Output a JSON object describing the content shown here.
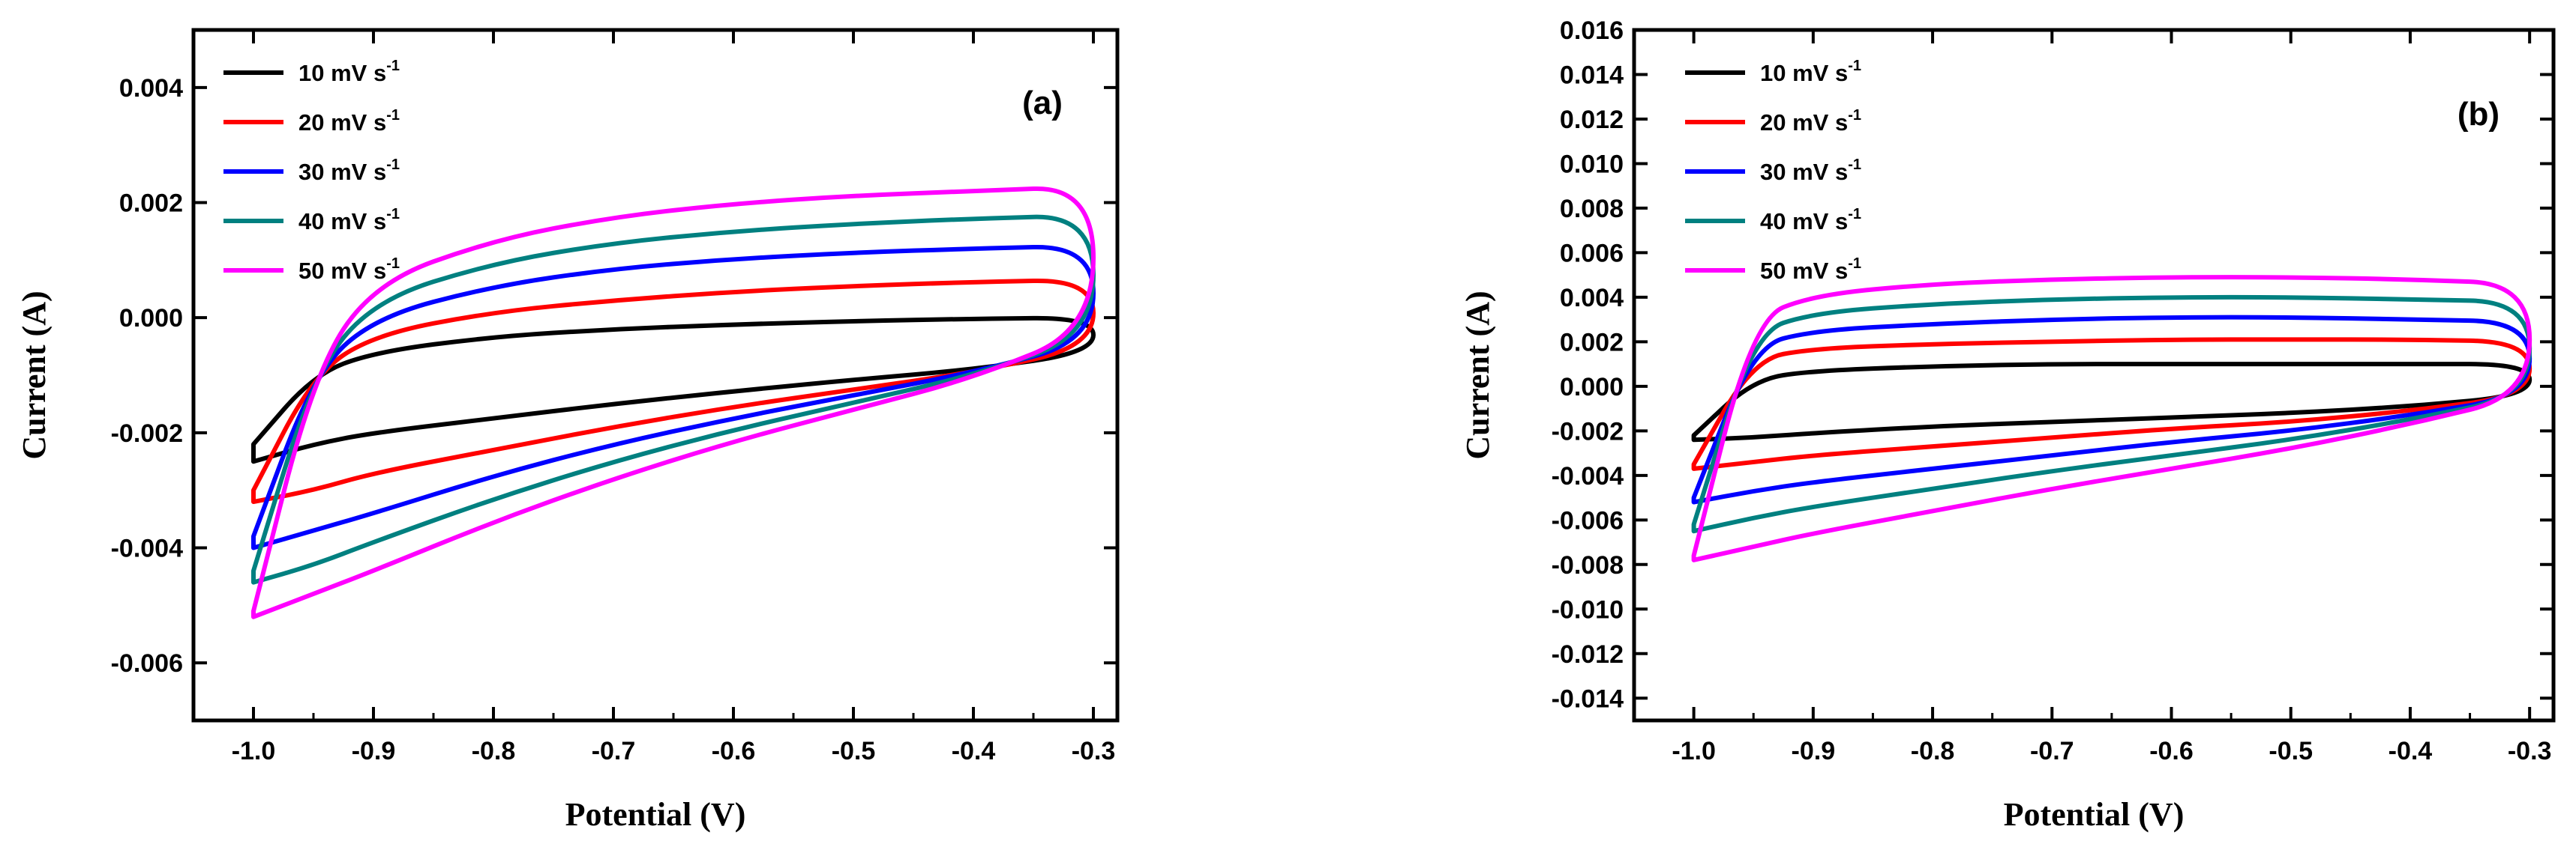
{
  "chart_data": [
    {
      "type": "line",
      "subtype": "cyclic-voltammogram",
      "panel_label": "(a)",
      "xlabel": "Potential (V)",
      "ylabel": "Current (A)",
      "xlim": [
        -1.05,
        -0.28
      ],
      "ylim": [
        -0.007,
        0.005
      ],
      "xticks": [
        -1.0,
        -0.9,
        -0.8,
        -0.7,
        -0.6,
        -0.5,
        -0.4,
        -0.3
      ],
      "xtick_labels": [
        "-1.0",
        "-0.9",
        "-0.8",
        "-0.7",
        "-0.6",
        "-0.5",
        "-0.4",
        "-0.3"
      ],
      "yticks": [
        -0.006,
        -0.004,
        -0.002,
        0.0,
        0.002,
        0.004
      ],
      "ytick_labels": [
        "-0.006",
        "-0.004",
        "-0.002",
        "0.000",
        "0.002",
        "0.004"
      ],
      "legend_position": "top-left",
      "series": [
        {
          "name": "10 mV s",
          "unit_sup": "-1",
          "color": "#000000",
          "x": [
            -1.0,
            -0.95,
            -0.9,
            -0.8,
            -0.7,
            -0.6,
            -0.5,
            -0.4,
            -0.3
          ],
          "upper": [
            -0.0022,
            -0.001,
            -0.0006,
            -0.00033,
            -0.0002,
            -0.00012,
            -6e-05,
            -2e-05,
            0.0
          ],
          "lower": [
            -0.0025,
            -0.0022,
            -0.002,
            -0.00175,
            -0.0015,
            -0.00128,
            -0.00108,
            -0.0009,
            -0.0006
          ]
        },
        {
          "name": "20 mV s",
          "unit_sup": "-1",
          "color": "#ff0000",
          "x": [
            -1.0,
            -0.95,
            -0.9,
            -0.8,
            -0.7,
            -0.6,
            -0.5,
            -0.4,
            -0.3
          ],
          "upper": [
            -0.003,
            -0.001,
            -0.0003,
            0.0001,
            0.0003,
            0.00045,
            0.00055,
            0.00062,
            0.00066
          ],
          "lower": [
            -0.0032,
            -0.003,
            -0.0027,
            -0.0023,
            -0.0019,
            -0.00155,
            -0.00125,
            -0.00095,
            -0.0005
          ]
        },
        {
          "name": "30 mV s",
          "unit_sup": "-1",
          "color": "#0000ff",
          "x": [
            -1.0,
            -0.95,
            -0.9,
            -0.8,
            -0.7,
            -0.6,
            -0.5,
            -0.4,
            -0.3
          ],
          "upper": [
            -0.0038,
            -0.001,
            0.0,
            0.00055,
            0.00085,
            0.00102,
            0.00113,
            0.0012,
            0.00125
          ],
          "lower": [
            -0.004,
            -0.0037,
            -0.0034,
            -0.00275,
            -0.0022,
            -0.00175,
            -0.00135,
            -0.00095,
            -0.0004
          ]
        },
        {
          "name": "40 mV s",
          "unit_sup": "-1",
          "color": "#008080",
          "x": [
            -1.0,
            -0.95,
            -0.9,
            -0.8,
            -0.7,
            -0.6,
            -0.5,
            -0.4,
            -0.3
          ],
          "upper": [
            -0.0044,
            -0.001,
            0.0003,
            0.00095,
            0.0013,
            0.0015,
            0.00163,
            0.00172,
            0.00178
          ],
          "lower": [
            -0.0046,
            -0.0043,
            -0.0039,
            -0.00315,
            -0.0025,
            -0.00195,
            -0.00148,
            -0.001,
            -0.0003
          ]
        },
        {
          "name": "50 mV s",
          "unit_sup": "-1",
          "color": "#ff00ff",
          "x": [
            -1.0,
            -0.95,
            -0.9,
            -0.8,
            -0.7,
            -0.6,
            -0.5,
            -0.4,
            -0.3
          ],
          "upper": [
            -0.0051,
            -0.001,
            0.0006,
            0.00135,
            0.00175,
            0.00198,
            0.00212,
            0.0022,
            0.00228
          ],
          "lower": [
            -0.0052,
            -0.0048,
            -0.0044,
            -0.00355,
            -0.0028,
            -0.00215,
            -0.0016,
            -0.00105,
            -0.0002
          ]
        }
      ]
    },
    {
      "type": "line",
      "subtype": "cyclic-voltammogram",
      "panel_label": "(b)",
      "xlabel": "Potential (V)",
      "ylabel": "Current (A)",
      "xlim": [
        -1.05,
        -0.28
      ],
      "ylim": [
        -0.015,
        0.016
      ],
      "xticks": [
        -1.0,
        -0.9,
        -0.8,
        -0.7,
        -0.6,
        -0.5,
        -0.4,
        -0.3
      ],
      "xtick_labels": [
        "-1.0",
        "-0.9",
        "-0.8",
        "-0.7",
        "-0.6",
        "-0.5",
        "-0.4",
        "-0.3"
      ],
      "yticks": [
        -0.014,
        -0.012,
        -0.01,
        -0.008,
        -0.006,
        -0.004,
        -0.002,
        0.0,
        0.002,
        0.004,
        0.006,
        0.008,
        0.01,
        0.012,
        0.014,
        0.016
      ],
      "ytick_labels": [
        "-0.014",
        "-0.012",
        "-0.010",
        "-0.008",
        "-0.006",
        "-0.004",
        "-0.002",
        "0.000",
        "0.002",
        "0.004",
        "0.006",
        "0.008",
        "0.010",
        "0.012",
        "0.014",
        "0.016"
      ],
      "legend_position": "top-left",
      "series": [
        {
          "name": "10 mV s",
          "unit_sup": "-1",
          "color": "#000000",
          "x": [
            -1.0,
            -0.95,
            -0.9,
            -0.8,
            -0.7,
            -0.6,
            -0.5,
            -0.4,
            -0.3
          ],
          "upper": [
            -0.0022,
            0.0003,
            0.0007,
            0.0009,
            0.001,
            0.001,
            0.001,
            0.001,
            0.001
          ],
          "lower": [
            -0.0024,
            -0.0023,
            -0.0021,
            -0.0018,
            -0.0016,
            -0.0014,
            -0.0012,
            -0.0009,
            -0.0004
          ]
        },
        {
          "name": "20 mV s",
          "unit_sup": "-1",
          "color": "#ff0000",
          "x": [
            -1.0,
            -0.95,
            -0.9,
            -0.8,
            -0.7,
            -0.6,
            -0.5,
            -0.4,
            -0.3
          ],
          "upper": [
            -0.0035,
            0.0012,
            0.0017,
            0.0019,
            0.002,
            0.0021,
            0.0021,
            0.0021,
            0.002
          ],
          "lower": [
            -0.0037,
            -0.0034,
            -0.0031,
            -0.0027,
            -0.0023,
            -0.0019,
            -0.0016,
            -0.0011,
            -0.0004
          ]
        },
        {
          "name": "30 mV s",
          "unit_sup": "-1",
          "color": "#0000ff",
          "x": [
            -1.0,
            -0.95,
            -0.9,
            -0.8,
            -0.7,
            -0.6,
            -0.5,
            -0.4,
            -0.3
          ],
          "upper": [
            -0.005,
            0.0018,
            0.0025,
            0.0028,
            0.003,
            0.0031,
            0.0031,
            0.003,
            0.0029
          ],
          "lower": [
            -0.0052,
            -0.0047,
            -0.0043,
            -0.0037,
            -0.0031,
            -0.0025,
            -0.002,
            -0.0013,
            -0.0004
          ]
        },
        {
          "name": "40 mV s",
          "unit_sup": "-1",
          "color": "#008080",
          "x": [
            -1.0,
            -0.95,
            -0.9,
            -0.8,
            -0.7,
            -0.6,
            -0.5,
            -0.4,
            -0.3
          ],
          "upper": [
            -0.0062,
            0.0024,
            0.0033,
            0.0037,
            0.0039,
            0.004,
            0.004,
            0.0039,
            0.0038
          ],
          "lower": [
            -0.0065,
            -0.0059,
            -0.0054,
            -0.0046,
            -0.0038,
            -0.0031,
            -0.0024,
            -0.0015,
            -0.0004
          ]
        },
        {
          "name": "50 mV s",
          "unit_sup": "-1",
          "color": "#ff00ff",
          "x": [
            -1.0,
            -0.95,
            -0.9,
            -0.8,
            -0.7,
            -0.6,
            -0.5,
            -0.4,
            -0.3
          ],
          "upper": [
            -0.0076,
            0.003,
            0.0041,
            0.0046,
            0.0048,
            0.0049,
            0.0049,
            0.0048,
            0.0046
          ],
          "lower": [
            -0.0078,
            -0.0072,
            -0.0066,
            -0.0056,
            -0.0046,
            -0.0037,
            -0.0028,
            -0.0017,
            -0.0004
          ]
        }
      ]
    }
  ]
}
